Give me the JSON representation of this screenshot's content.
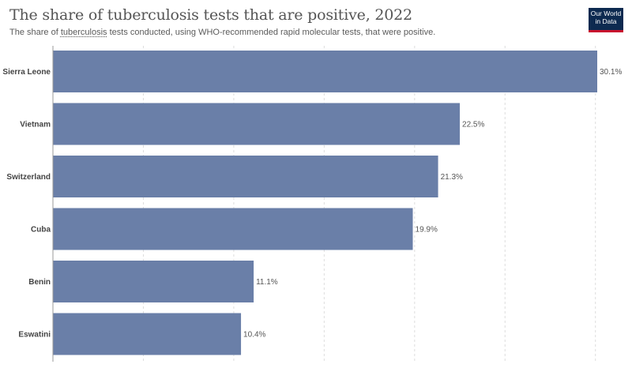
{
  "header": {
    "title": "The share of tuberculosis tests that are positive, 2022",
    "subtitle_before": "The share of ",
    "subtitle_link": "tuberculosis",
    "subtitle_after": " tests conducted, using WHO-recommended rapid molecular tests, that were positive."
  },
  "logo": {
    "line1": "Our World",
    "line2": "in Data"
  },
  "colors": {
    "bar": "#6a7fa8",
    "grid": "#dddddd",
    "axis": "#999999"
  },
  "chart_data": {
    "type": "bar",
    "orientation": "horizontal",
    "categories": [
      "Sierra Leone",
      "Vietnam",
      "Switzerland",
      "Cuba",
      "Benin",
      "Eswatini"
    ],
    "values": [
      30.1,
      22.5,
      21.3,
      19.9,
      11.1,
      10.4
    ],
    "value_labels": [
      "30.1%",
      "22.5%",
      "21.3%",
      "19.9%",
      "11.1%",
      "10.4%"
    ],
    "unit": "%",
    "xlim": [
      0,
      30.1
    ],
    "grid": true
  }
}
